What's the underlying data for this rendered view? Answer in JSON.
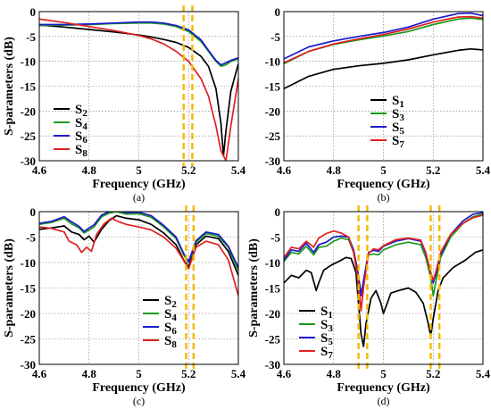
{
  "chart_data": [
    {
      "panel_label": "(a)",
      "type": "line",
      "xlabel": "Frequency (GHz)",
      "ylabel": "S-parameters (dB)",
      "xlim": [
        4.6,
        5.4
      ],
      "ylim": [
        -30,
        0
      ],
      "xticks": [
        "4.6",
        "4.8",
        "5",
        "5.2",
        "5.4"
      ],
      "yticks": [
        "0",
        "-5",
        "-10",
        "-15",
        "-20",
        "-25",
        "-30"
      ],
      "grid": true,
      "legend_position": "bottom-left",
      "highlight_band": [
        5.18,
        5.215
      ],
      "series": [
        {
          "name": "S2",
          "name_main": "S",
          "name_sub": "2",
          "color": "#000000",
          "x": [
            4.6,
            4.7,
            4.8,
            4.9,
            5.0,
            5.05,
            5.1,
            5.15,
            5.2,
            5.25,
            5.28,
            5.31,
            5.33,
            5.34,
            5.35,
            5.37,
            5.4
          ],
          "y": [
            -2.7,
            -3.1,
            -3.6,
            -4.1,
            -4.7,
            -5.1,
            -5.6,
            -6.2,
            -7.2,
            -9.0,
            -11.0,
            -15.5,
            -22.5,
            -29.0,
            -24.0,
            -16.0,
            -10.5
          ]
        },
        {
          "name": "S4",
          "name_main": "S",
          "name_sub": "4",
          "color": "#1a9a1a",
          "x": [
            4.6,
            4.7,
            4.8,
            4.9,
            5.0,
            5.05,
            5.1,
            5.15,
            5.2,
            5.25,
            5.28,
            5.31,
            5.33,
            5.35,
            5.37,
            5.4
          ],
          "y": [
            -2.8,
            -2.7,
            -2.6,
            -2.4,
            -2.3,
            -2.3,
            -2.5,
            -3.0,
            -4.0,
            -6.0,
            -8.0,
            -10.0,
            -11.0,
            -10.7,
            -10.0,
            -9.5
          ]
        },
        {
          "name": "S6",
          "name_main": "S",
          "name_sub": "6",
          "color": "#1a1acc",
          "x": [
            4.6,
            4.7,
            4.8,
            4.9,
            5.0,
            5.05,
            5.1,
            5.15,
            5.2,
            5.25,
            5.28,
            5.31,
            5.33,
            5.35,
            5.37,
            5.4
          ],
          "y": [
            -2.6,
            -2.6,
            -2.5,
            -2.3,
            -2.1,
            -2.1,
            -2.3,
            -2.8,
            -3.7,
            -5.7,
            -7.8,
            -9.8,
            -10.7,
            -10.3,
            -9.8,
            -9.3
          ]
        },
        {
          "name": "S8",
          "name_main": "S",
          "name_sub": "8",
          "color": "#e02020",
          "x": [
            4.6,
            4.7,
            4.8,
            4.9,
            5.0,
            5.05,
            5.1,
            5.15,
            5.2,
            5.25,
            5.28,
            5.31,
            5.33,
            5.35,
            5.37,
            5.4
          ],
          "y": [
            -1.5,
            -2.2,
            -3.0,
            -3.8,
            -4.8,
            -5.5,
            -6.5,
            -8.0,
            -10.0,
            -13.5,
            -17.0,
            -23.0,
            -28.0,
            -30.0,
            -23.0,
            -13.5
          ]
        }
      ]
    },
    {
      "panel_label": "(b)",
      "type": "line",
      "xlabel": "Frequency (GHz)",
      "ylabel": "",
      "xlim": [
        4.6,
        5.4
      ],
      "ylim": [
        -30,
        0
      ],
      "xticks": [
        "4.6",
        "4.8",
        "5",
        "5.2",
        "5.4"
      ],
      "yticks": [
        "0",
        "-5",
        "-10",
        "-15",
        "-20",
        "-25",
        "-30"
      ],
      "grid": true,
      "legend_position": "bottom-right",
      "series": [
        {
          "name": "S1",
          "name_main": "S",
          "name_sub": "1",
          "color": "#000000",
          "x": [
            4.6,
            4.7,
            4.8,
            4.9,
            5.0,
            5.1,
            5.2,
            5.3,
            5.35,
            5.4
          ],
          "y": [
            -15.5,
            -13.0,
            -11.6,
            -10.9,
            -10.4,
            -9.7,
            -8.7,
            -7.8,
            -7.5,
            -7.7
          ]
        },
        {
          "name": "S3",
          "name_main": "S",
          "name_sub": "3",
          "color": "#1a9a1a",
          "x": [
            4.6,
            4.7,
            4.8,
            4.9,
            5.0,
            5.1,
            5.2,
            5.3,
            5.35,
            5.4
          ],
          "y": [
            -10.5,
            -8.0,
            -6.6,
            -5.7,
            -4.9,
            -4.0,
            -2.6,
            -1.5,
            -1.3,
            -1.6
          ]
        },
        {
          "name": "S5",
          "name_main": "S",
          "name_sub": "5",
          "color": "#1a1acc",
          "x": [
            4.6,
            4.7,
            4.8,
            4.9,
            5.0,
            5.1,
            5.2,
            5.3,
            5.35,
            5.4
          ],
          "y": [
            -9.5,
            -7.1,
            -5.9,
            -5.0,
            -4.2,
            -3.1,
            -1.5,
            -0.4,
            -0.3,
            -0.8
          ]
        },
        {
          "name": "S7",
          "name_main": "S",
          "name_sub": "7",
          "color": "#e02020",
          "x": [
            4.6,
            4.7,
            4.8,
            4.9,
            5.0,
            5.1,
            5.2,
            5.3,
            5.35,
            5.4
          ],
          "y": [
            -10.3,
            -8.0,
            -6.5,
            -5.5,
            -4.6,
            -3.5,
            -2.1,
            -1.1,
            -1.0,
            -1.3
          ]
        }
      ]
    },
    {
      "panel_label": "(c)",
      "type": "line",
      "xlabel": "Frequency (GHz)",
      "ylabel": "S-parameters (dB)",
      "xlim": [
        4.6,
        5.4
      ],
      "ylim": [
        -30,
        0
      ],
      "xticks": [
        "4.6",
        "4.8",
        "5",
        "5.2",
        "5.4"
      ],
      "yticks": [
        "0",
        "-5",
        "-10",
        "-15",
        "-20",
        "-25",
        "-30"
      ],
      "grid": true,
      "legend_position": "bottom-right",
      "highlight_band": [
        5.19,
        5.22
      ],
      "series": [
        {
          "name": "S2",
          "name_main": "S",
          "name_sub": "2",
          "color": "#000000",
          "x": [
            4.6,
            4.65,
            4.7,
            4.73,
            4.76,
            4.78,
            4.8,
            4.82,
            4.85,
            4.88,
            4.91,
            4.95,
            5.0,
            5.05,
            5.1,
            5.15,
            5.18,
            5.2,
            5.23,
            5.27,
            5.32,
            5.36,
            5.4
          ],
          "y": [
            -3.5,
            -3.2,
            -2.8,
            -4.0,
            -4.5,
            -5.5,
            -4.8,
            -6.0,
            -3.5,
            -1.8,
            -0.8,
            -1.3,
            -1.6,
            -2.5,
            -4.2,
            -6.5,
            -9.5,
            -10.8,
            -6.5,
            -4.8,
            -5.3,
            -7.8,
            -12.5
          ]
        },
        {
          "name": "S4",
          "name_main": "S",
          "name_sub": "4",
          "color": "#1a9a1a",
          "x": [
            4.6,
            4.65,
            4.7,
            4.73,
            4.76,
            4.78,
            4.8,
            4.82,
            4.85,
            4.88,
            4.91,
            4.95,
            5.0,
            5.05,
            5.1,
            5.15,
            5.18,
            5.2,
            5.23,
            5.27,
            5.32,
            5.36,
            5.4
          ],
          "y": [
            -2.5,
            -2.1,
            -1.3,
            -2.4,
            -3.2,
            -4.2,
            -3.6,
            -3.0,
            -1.0,
            -0.3,
            0.0,
            -0.5,
            -0.4,
            -1.1,
            -3.0,
            -5.3,
            -8.5,
            -10.0,
            -6.0,
            -4.3,
            -4.8,
            -7.0,
            -11.5
          ]
        },
        {
          "name": "S6",
          "name_main": "S",
          "name_sub": "6",
          "color": "#1a1acc",
          "x": [
            4.6,
            4.65,
            4.7,
            4.73,
            4.76,
            4.78,
            4.8,
            4.82,
            4.85,
            4.88,
            4.91,
            4.95,
            5.0,
            5.05,
            5.1,
            5.15,
            5.18,
            5.2,
            5.23,
            5.27,
            5.32,
            5.36,
            5.4
          ],
          "y": [
            -2.3,
            -1.9,
            -1.0,
            -2.0,
            -2.9,
            -3.9,
            -3.2,
            -2.6,
            -0.7,
            0.0,
            0.2,
            -0.2,
            -0.1,
            -0.8,
            -2.7,
            -5.0,
            -8.2,
            -9.8,
            -5.7,
            -4.0,
            -4.5,
            -6.8,
            -11.0
          ]
        },
        {
          "name": "S8",
          "name_main": "S",
          "name_sub": "8",
          "color": "#e02020",
          "x": [
            4.6,
            4.65,
            4.7,
            4.72,
            4.75,
            4.77,
            4.79,
            4.81,
            4.83,
            4.86,
            4.89,
            4.92,
            4.95,
            5.0,
            5.05,
            5.1,
            5.15,
            5.18,
            5.2,
            5.23,
            5.27,
            5.32,
            5.36,
            5.4
          ],
          "y": [
            -3.0,
            -3.3,
            -4.0,
            -5.8,
            -6.5,
            -8.0,
            -7.0,
            -7.8,
            -4.5,
            -2.4,
            -1.3,
            -2.0,
            -2.5,
            -3.0,
            -3.6,
            -5.0,
            -7.2,
            -9.6,
            -11.2,
            -7.0,
            -5.8,
            -6.5,
            -9.5,
            -16.5
          ]
        }
      ]
    },
    {
      "panel_label": "(d)",
      "type": "line",
      "xlabel": "Frequency (GHz)",
      "ylabel": "S-parameters (dB)",
      "xlim": [
        4.6,
        5.4
      ],
      "ylim": [
        -30,
        0
      ],
      "xticks": [
        "4.6",
        "4.8",
        "5",
        "5.2",
        "5.4"
      ],
      "yticks": [
        "0",
        "-5",
        "-10",
        "-15",
        "-20",
        "-25",
        "-30"
      ],
      "grid": true,
      "legend_position": "bottom-left",
      "highlight_bands": [
        [
          4.9,
          4.935
        ],
        [
          5.19,
          5.225
        ]
      ],
      "series": [
        {
          "name": "S1",
          "name_main": "S",
          "name_sub": "1",
          "color": "#000000",
          "x": [
            4.6,
            4.63,
            4.66,
            4.69,
            4.71,
            4.73,
            4.74,
            4.76,
            4.79,
            4.82,
            4.85,
            4.87,
            4.89,
            4.9,
            4.91,
            4.92,
            4.93,
            4.95,
            4.97,
            4.99,
            5.0,
            5.03,
            5.06,
            5.1,
            5.13,
            5.16,
            5.18,
            5.19,
            5.2,
            5.22,
            5.24,
            5.28,
            5.33,
            5.37,
            5.4
          ],
          "y": [
            -14.0,
            -12.5,
            -13.0,
            -11.5,
            -12.0,
            -15.5,
            -14.0,
            -11.5,
            -10.5,
            -9.8,
            -9.0,
            -9.2,
            -12.0,
            -18.0,
            -24.0,
            -26.5,
            -22.0,
            -17.0,
            -15.5,
            -18.0,
            -20.0,
            -16.0,
            -15.5,
            -15.0,
            -15.8,
            -18.0,
            -22.0,
            -24.5,
            -21.0,
            -15.5,
            -13.0,
            -11.0,
            -9.5,
            -8.0,
            -7.5
          ]
        },
        {
          "name": "S3",
          "name_main": "S",
          "name_sub": "3",
          "color": "#1a9a1a",
          "x": [
            4.6,
            4.63,
            4.66,
            4.69,
            4.72,
            4.74,
            4.77,
            4.8,
            4.83,
            4.86,
            4.88,
            4.9,
            4.91,
            4.92,
            4.94,
            4.96,
            4.98,
            5.0,
            5.05,
            5.1,
            5.15,
            5.17,
            5.19,
            5.2,
            5.21,
            5.23,
            5.27,
            5.32,
            5.36,
            5.4
          ],
          "y": [
            -9.8,
            -8.0,
            -8.3,
            -6.8,
            -8.5,
            -7.0,
            -6.8,
            -5.8,
            -5.2,
            -5.5,
            -8.0,
            -13.0,
            -16.0,
            -14.0,
            -8.5,
            -8.3,
            -8.5,
            -7.5,
            -6.5,
            -6.0,
            -6.5,
            -9.0,
            -13.0,
            -16.5,
            -14.0,
            -9.0,
            -5.0,
            -2.3,
            -1.0,
            -0.5
          ]
        },
        {
          "name": "S5",
          "name_main": "S",
          "name_sub": "5",
          "color": "#1a1acc",
          "x": [
            4.6,
            4.63,
            4.66,
            4.69,
            4.72,
            4.74,
            4.77,
            4.8,
            4.83,
            4.86,
            4.88,
            4.9,
            4.91,
            4.92,
            4.94,
            4.96,
            4.98,
            5.0,
            5.05,
            5.1,
            5.15,
            5.17,
            5.19,
            5.2,
            5.21,
            5.23,
            5.27,
            5.32,
            5.36,
            5.4
          ],
          "y": [
            -9.5,
            -7.5,
            -7.8,
            -6.2,
            -8.0,
            -6.5,
            -6.0,
            -5.0,
            -4.8,
            -5.0,
            -7.5,
            -12.5,
            -16.5,
            -13.5,
            -8.0,
            -7.6,
            -7.8,
            -6.8,
            -5.8,
            -5.3,
            -5.8,
            -8.2,
            -12.0,
            -14.0,
            -12.5,
            -8.5,
            -4.5,
            -1.8,
            -0.5,
            -0.2
          ]
        },
        {
          "name": "S7",
          "name_main": "S",
          "name_sub": "7",
          "color": "#e02020",
          "x": [
            4.6,
            4.63,
            4.66,
            4.69,
            4.72,
            4.74,
            4.77,
            4.8,
            4.83,
            4.86,
            4.88,
            4.9,
            4.91,
            4.92,
            4.94,
            4.96,
            4.98,
            5.0,
            5.05,
            5.1,
            5.15,
            5.17,
            5.19,
            5.2,
            5.21,
            5.23,
            5.27,
            5.32,
            5.36,
            5.4
          ],
          "y": [
            -9.0,
            -7.0,
            -7.3,
            -5.8,
            -7.0,
            -5.2,
            -4.3,
            -3.8,
            -4.2,
            -5.0,
            -8.0,
            -14.0,
            -19.5,
            -15.0,
            -8.2,
            -7.3,
            -7.5,
            -6.7,
            -5.5,
            -5.2,
            -5.6,
            -8.0,
            -12.0,
            -13.5,
            -12.0,
            -8.0,
            -4.5,
            -2.3,
            -1.2,
            -0.7
          ]
        }
      ]
    }
  ]
}
